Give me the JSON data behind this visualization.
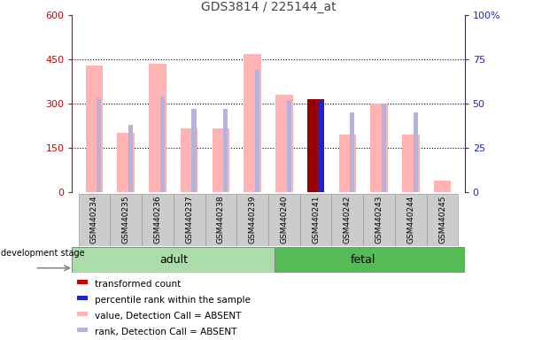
{
  "title": "GDS3814 / 225144_at",
  "samples": [
    "GSM440234",
    "GSM440235",
    "GSM440236",
    "GSM440237",
    "GSM440238",
    "GSM440239",
    "GSM440240",
    "GSM440241",
    "GSM440242",
    "GSM440243",
    "GSM440244",
    "GSM440245"
  ],
  "pink_values": [
    430,
    200,
    435,
    215,
    215,
    470,
    330,
    0,
    195,
    300,
    195,
    40
  ],
  "blue_ranks": [
    53,
    38,
    54,
    47,
    47,
    69,
    52,
    0,
    45,
    50,
    45,
    0
  ],
  "red_value": [
    0,
    0,
    0,
    0,
    0,
    0,
    0,
    315,
    0,
    0,
    0,
    0
  ],
  "dark_blue_rank": [
    0,
    0,
    0,
    0,
    0,
    0,
    0,
    52,
    0,
    0,
    0,
    0
  ],
  "adult_samples": 6,
  "fetal_samples": 6,
  "ylim_left": [
    0,
    600
  ],
  "ylim_right": [
    0,
    100
  ],
  "yticks_left": [
    0,
    150,
    300,
    450,
    600
  ],
  "yticks_right": [
    0,
    25,
    50,
    75,
    100
  ],
  "ytick_labels_left": [
    "0",
    "150",
    "300",
    "450",
    "600"
  ],
  "ytick_labels_right": [
    "0",
    "25",
    "50",
    "75",
    "100%"
  ],
  "adult_label": "adult",
  "fetal_label": "fetal",
  "dev_stage_label": "development stage",
  "legend_items": [
    {
      "label": "transformed count",
      "color": "#cc0000"
    },
    {
      "label": "percentile rank within the sample",
      "color": "#2222cc"
    },
    {
      "label": "value, Detection Call = ABSENT",
      "color": "#ffb3b3"
    },
    {
      "label": "rank, Detection Call = ABSENT",
      "color": "#b3b3dd"
    }
  ],
  "title_color": "#444444",
  "left_axis_color": "#cc0000",
  "right_axis_color": "#2222cc",
  "pink_bar_color": "#ffb3b3",
  "light_blue_bar_color": "#b3b3dd",
  "red_bar_color": "#990000",
  "dark_blue_bar_color": "#2222cc",
  "adult_bg": "#aaddaa",
  "fetal_bg": "#55bb55",
  "tick_bg": "#cccccc",
  "pink_bar_width": 0.55,
  "blue_bar_width": 0.15
}
